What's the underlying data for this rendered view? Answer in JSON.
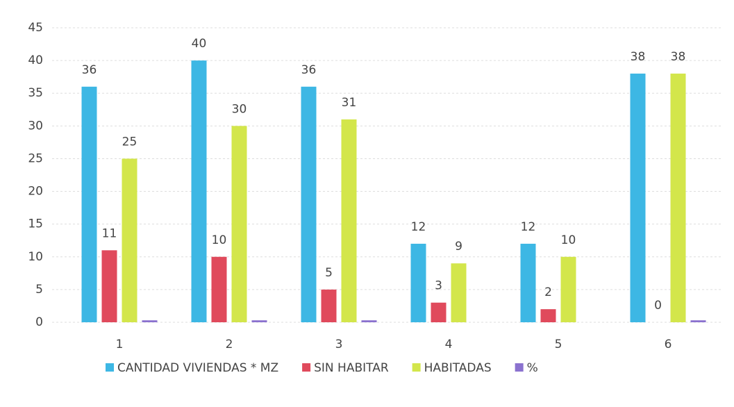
{
  "chart_data": {
    "type": "bar",
    "categories": [
      "1",
      "2",
      "3",
      "4",
      "5",
      "6"
    ],
    "series": [
      {
        "name": "CANTIDAD VIVIENDAS * MZ",
        "color": "#3db7e4",
        "values": [
          36,
          40,
          36,
          12,
          12,
          38
        ]
      },
      {
        "name": "SIN HABITAR",
        "color": "#e04a5c",
        "values": [
          11,
          10,
          5,
          3,
          2,
          0
        ]
      },
      {
        "name": "HABITADAS",
        "color": "#d3e64b",
        "values": [
          25,
          30,
          31,
          9,
          10,
          38
        ]
      },
      {
        "name": "%",
        "color": "#8b72cf",
        "values": [
          0.3,
          0.3,
          0.3,
          0,
          0,
          0.3
        ]
      }
    ],
    "labeled_series": [
      0,
      1,
      2
    ],
    "ylim": [
      0,
      45
    ],
    "yticks": [
      0,
      5,
      10,
      15,
      20,
      25,
      30,
      35,
      40,
      45
    ],
    "grid": true,
    "legend": "bottom"
  }
}
